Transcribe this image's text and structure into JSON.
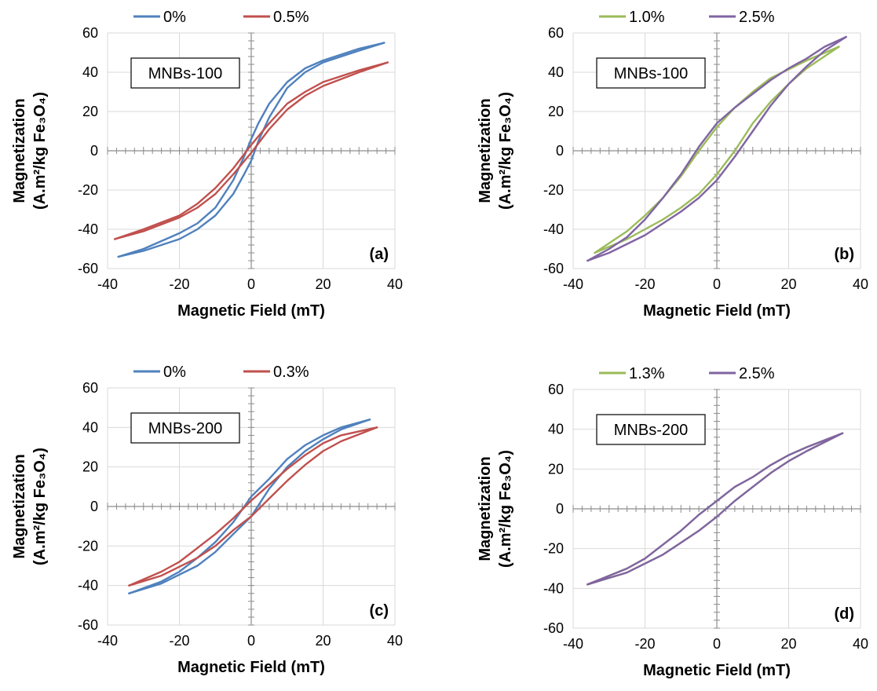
{
  "figure": {
    "title": "",
    "panels_count": 4
  },
  "chart_data": [
    {
      "type": "line",
      "panel_label": "(a)",
      "box_label": "MNBs-100",
      "xlabel": "Magnetic Field (mT)",
      "ylabel_line1": "Magnetization",
      "ylabel_line2": "(A.m²/kg Fe₃O₄)",
      "xlim": [
        -40,
        40
      ],
      "ylim": [
        -60,
        60
      ],
      "xticks": [
        -40,
        -20,
        0,
        20,
        40
      ],
      "yticks": [
        -60,
        -40,
        -20,
        0,
        20,
        40,
        60
      ],
      "grid": true,
      "legend_position": "top",
      "series": [
        {
          "name": "0%",
          "color": "#4f81bd",
          "ascending": [
            [
              -37,
              -54
            ],
            [
              -30,
              -51
            ],
            [
              -20,
              -45
            ],
            [
              -15,
              -40
            ],
            [
              -10,
              -33
            ],
            [
              -5,
              -22
            ],
            [
              -2,
              -12
            ],
            [
              0,
              -5
            ],
            [
              2,
              5
            ],
            [
              5,
              17
            ],
            [
              10,
              32
            ],
            [
              15,
              40
            ],
            [
              20,
              45
            ],
            [
              30,
              51
            ],
            [
              37,
              55
            ]
          ],
          "descending": [
            [
              37,
              55
            ],
            [
              30,
              52
            ],
            [
              20,
              46
            ],
            [
              15,
              42
            ],
            [
              10,
              35
            ],
            [
              5,
              24
            ],
            [
              2,
              14
            ],
            [
              0,
              6
            ],
            [
              -2,
              -3
            ],
            [
              -5,
              -15
            ],
            [
              -10,
              -29
            ],
            [
              -15,
              -37
            ],
            [
              -20,
              -42
            ],
            [
              -30,
              -50
            ],
            [
              -37,
              -54
            ]
          ]
        },
        {
          "name": "0.5%",
          "color": "#c0504d",
          "ascending": [
            [
              -38,
              -45
            ],
            [
              -30,
              -41
            ],
            [
              -20,
              -34
            ],
            [
              -15,
              -29
            ],
            [
              -10,
              -22
            ],
            [
              -5,
              -12
            ],
            [
              0,
              -1
            ],
            [
              5,
              11
            ],
            [
              10,
              21
            ],
            [
              15,
              28
            ],
            [
              20,
              33
            ],
            [
              30,
              40
            ],
            [
              38,
              45
            ]
          ],
          "descending": [
            [
              38,
              45
            ],
            [
              30,
              41
            ],
            [
              20,
              35
            ],
            [
              15,
              30
            ],
            [
              10,
              24
            ],
            [
              5,
              14
            ],
            [
              0,
              3
            ],
            [
              -5,
              -9
            ],
            [
              -10,
              -19
            ],
            [
              -15,
              -27
            ],
            [
              -20,
              -33
            ],
            [
              -30,
              -40
            ],
            [
              -38,
              -45
            ]
          ]
        }
      ]
    },
    {
      "type": "line",
      "panel_label": "(b)",
      "box_label": "MNBs-100",
      "xlabel": "Magnetic Field (mT)",
      "ylabel_line1": "Magnetization",
      "ylabel_line2": "(A.m²/kg Fe₃O₄)",
      "xlim": [
        -40,
        40
      ],
      "ylim": [
        -60,
        60
      ],
      "xticks": [
        -40,
        -20,
        0,
        20,
        40
      ],
      "yticks": [
        -60,
        -40,
        -20,
        0,
        20,
        40,
        60
      ],
      "grid": true,
      "legend_position": "top",
      "series": [
        {
          "name": "1.0%",
          "color": "#9bbb59",
          "ascending": [
            [
              -34,
              -52
            ],
            [
              -25,
              -45
            ],
            [
              -15,
              -35
            ],
            [
              -10,
              -29
            ],
            [
              -5,
              -22
            ],
            [
              0,
              -12
            ],
            [
              5,
              0
            ],
            [
              10,
              14
            ],
            [
              15,
              25
            ],
            [
              20,
              34
            ],
            [
              25,
              42
            ],
            [
              34,
              53
            ]
          ],
          "descending": [
            [
              34,
              53
            ],
            [
              25,
              46
            ],
            [
              15,
              37
            ],
            [
              10,
              30
            ],
            [
              5,
              22
            ],
            [
              0,
              12
            ],
            [
              -5,
              0
            ],
            [
              -10,
              -13
            ],
            [
              -15,
              -24
            ],
            [
              -20,
              -33
            ],
            [
              -25,
              -41
            ],
            [
              -34,
              -52
            ]
          ]
        },
        {
          "name": "2.5%",
          "color": "#8064a2",
          "ascending": [
            [
              -36,
              -56
            ],
            [
              -30,
              -52
            ],
            [
              -20,
              -43
            ],
            [
              -15,
              -37
            ],
            [
              -10,
              -31
            ],
            [
              -5,
              -24
            ],
            [
              0,
              -15
            ],
            [
              5,
              -3
            ],
            [
              10,
              10
            ],
            [
              15,
              23
            ],
            [
              20,
              34
            ],
            [
              25,
              43
            ],
            [
              30,
              51
            ],
            [
              36,
              58
            ]
          ],
          "descending": [
            [
              36,
              58
            ],
            [
              30,
              53
            ],
            [
              25,
              47
            ],
            [
              20,
              42
            ],
            [
              15,
              36
            ],
            [
              10,
              29
            ],
            [
              5,
              22
            ],
            [
              0,
              14
            ],
            [
              -5,
              2
            ],
            [
              -10,
              -12
            ],
            [
              -15,
              -24
            ],
            [
              -20,
              -35
            ],
            [
              -25,
              -44
            ],
            [
              -30,
              -50
            ],
            [
              -36,
              -56
            ]
          ]
        }
      ]
    },
    {
      "type": "line",
      "panel_label": "(c)",
      "box_label": "MNBs-200",
      "xlabel": "Magnetic Field (mT)",
      "ylabel_line1": "Magnetization",
      "ylabel_line2": "(A.m²/kg Fe₃O₄)",
      "xlim": [
        -40,
        40
      ],
      "ylim": [
        -60,
        60
      ],
      "xticks": [
        -40,
        -20,
        0,
        20,
        40
      ],
      "yticks": [
        -60,
        -40,
        -20,
        0,
        20,
        40,
        60
      ],
      "grid": true,
      "legend_position": "top",
      "series": [
        {
          "name": "0%",
          "color": "#4f81bd",
          "ascending": [
            [
              -34,
              -44
            ],
            [
              -25,
              -39
            ],
            [
              -15,
              -30
            ],
            [
              -10,
              -23
            ],
            [
              -5,
              -14
            ],
            [
              0,
              -5
            ],
            [
              5,
              9
            ],
            [
              10,
              20
            ],
            [
              15,
              28
            ],
            [
              20,
              34
            ],
            [
              25,
              39
            ],
            [
              33,
              44
            ]
          ],
          "descending": [
            [
              33,
              44
            ],
            [
              25,
              40
            ],
            [
              20,
              36
            ],
            [
              15,
              31
            ],
            [
              10,
              24
            ],
            [
              5,
              14
            ],
            [
              0,
              5
            ],
            [
              -5,
              -8
            ],
            [
              -10,
              -18
            ],
            [
              -15,
              -26
            ],
            [
              -20,
              -33
            ],
            [
              -25,
              -38
            ],
            [
              -34,
              -44
            ]
          ]
        },
        {
          "name": "0.3%",
          "color": "#c0504d",
          "ascending": [
            [
              -34,
              -40
            ],
            [
              -25,
              -35
            ],
            [
              -15,
              -26
            ],
            [
              -10,
              -20
            ],
            [
              -5,
              -12
            ],
            [
              0,
              -5
            ],
            [
              5,
              4
            ],
            [
              10,
              13
            ],
            [
              15,
              21
            ],
            [
              20,
              28
            ],
            [
              25,
              33
            ],
            [
              35,
              40
            ]
          ],
          "descending": [
            [
              35,
              40
            ],
            [
              25,
              36
            ],
            [
              20,
              32
            ],
            [
              15,
              26
            ],
            [
              10,
              19
            ],
            [
              5,
              11
            ],
            [
              0,
              3
            ],
            [
              -5,
              -6
            ],
            [
              -10,
              -14
            ],
            [
              -15,
              -21
            ],
            [
              -20,
              -28
            ],
            [
              -25,
              -33
            ],
            [
              -34,
              -40
            ]
          ]
        }
      ]
    },
    {
      "type": "line",
      "panel_label": "(d)",
      "box_label": "MNBs-200",
      "xlabel": "Magnetic Field (mT)",
      "ylabel_line1": "Magnetization",
      "ylabel_line2": "(A.m²/kg Fe₃O₄)",
      "xlim": [
        -40,
        40
      ],
      "ylim": [
        -60,
        60
      ],
      "xticks": [
        -40,
        -20,
        0,
        20,
        40
      ],
      "yticks": [
        -60,
        -40,
        -20,
        0,
        20,
        40,
        60
      ],
      "grid": true,
      "legend_position": "top",
      "series": [
        {
          "name": "1.3%",
          "color": "#9bbb59",
          "ascending": [
            [
              -36,
              -38
            ],
            [
              -25,
              -32
            ],
            [
              -15,
              -23
            ],
            [
              -10,
              -17
            ],
            [
              -5,
              -11
            ],
            [
              0,
              -4
            ],
            [
              5,
              4
            ],
            [
              10,
              11
            ],
            [
              15,
              18
            ],
            [
              20,
              24
            ],
            [
              25,
              29
            ],
            [
              35,
              38
            ]
          ],
          "descending": [
            [
              35,
              38
            ],
            [
              25,
              31
            ],
            [
              20,
              27
            ],
            [
              15,
              22
            ],
            [
              10,
              16
            ],
            [
              5,
              11
            ],
            [
              0,
              4
            ],
            [
              -5,
              -3
            ],
            [
              -10,
              -11
            ],
            [
              -15,
              -18
            ],
            [
              -20,
              -25
            ],
            [
              -25,
              -30
            ],
            [
              -36,
              -38
            ]
          ]
        },
        {
          "name": "2.5%",
          "color": "#8064a2",
          "ascending": [
            [
              -36,
              -38
            ],
            [
              -25,
              -32
            ],
            [
              -15,
              -23
            ],
            [
              -10,
              -17
            ],
            [
              -5,
              -11
            ],
            [
              0,
              -4
            ],
            [
              5,
              4
            ],
            [
              10,
              11
            ],
            [
              15,
              18
            ],
            [
              20,
              24
            ],
            [
              25,
              29
            ],
            [
              35,
              38
            ]
          ],
          "descending": [
            [
              35,
              38
            ],
            [
              25,
              31
            ],
            [
              20,
              27
            ],
            [
              15,
              22
            ],
            [
              10,
              16
            ],
            [
              5,
              11
            ],
            [
              0,
              4
            ],
            [
              -5,
              -3
            ],
            [
              -10,
              -11
            ],
            [
              -15,
              -18
            ],
            [
              -20,
              -25
            ],
            [
              -25,
              -30
            ],
            [
              -36,
              -38
            ]
          ]
        }
      ]
    }
  ]
}
